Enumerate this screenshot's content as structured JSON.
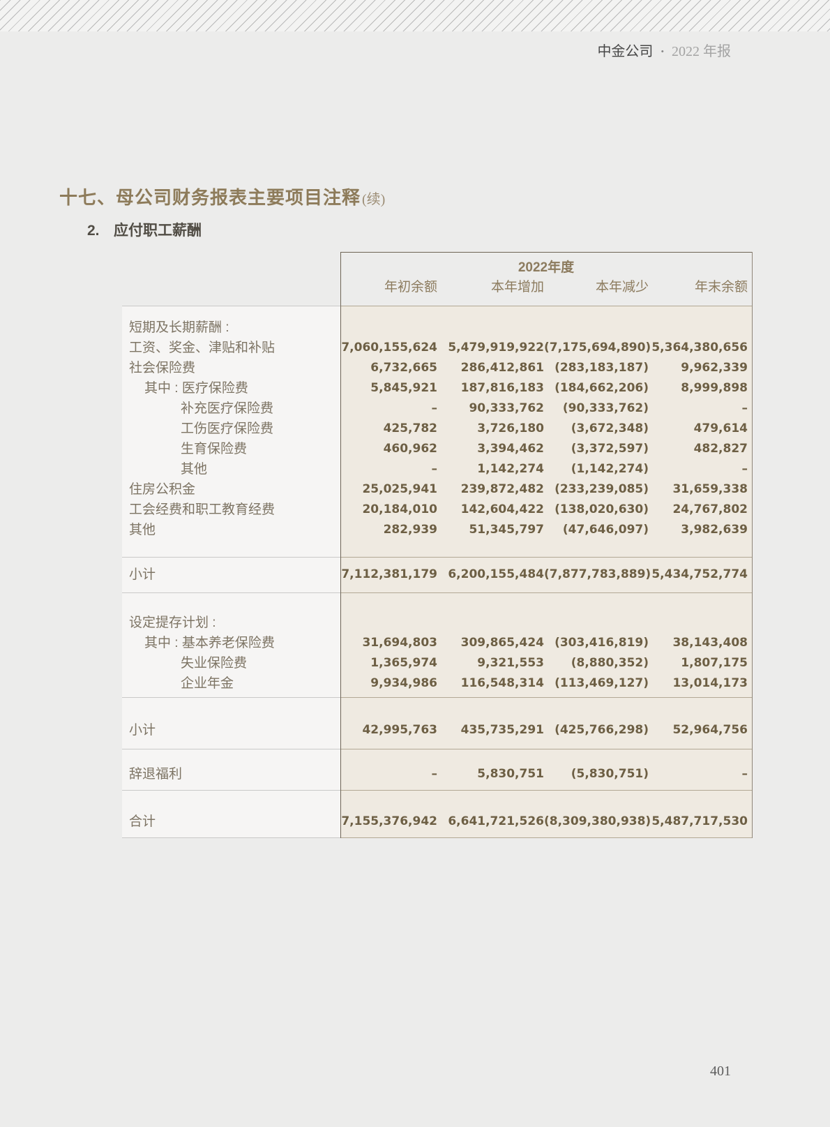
{
  "page": {
    "number": "401"
  },
  "header": {
    "company": "中金公司",
    "separator": "•",
    "report": "2022 年报"
  },
  "section_title": {
    "text": "十七、母公司财务报表主要项目注释",
    "suffix": "(续)"
  },
  "subsection": {
    "index": "2.",
    "title": "应付职工薪酬"
  },
  "colors": {
    "page_bg": "#ececeb",
    "label_panel_bg": "#f6f5f4",
    "data_panel_bg": "#efeae1",
    "accent_brown": "#8c7b5e",
    "number_text": "#6d5f44",
    "label_text": "#7d7464",
    "dark_rule": "#6e6455",
    "divider_gray": "#c9c9c8",
    "divider_tan": "#b2a894"
  },
  "table": {
    "period_header": "2022年度",
    "columns": [
      "年初余额",
      "本年增加",
      "本年减少",
      "年末余额"
    ],
    "sections": [
      {
        "rows": [
          {
            "label": "短期及长期薪酬 :",
            "indent": 0,
            "values": [
              "",
              "",
              "",
              ""
            ]
          },
          {
            "label": "工资、奖金、津贴和补贴",
            "indent": 0,
            "values": [
              "7,060,155,624",
              "5,479,919,922",
              "(7,175,694,890)",
              "5,364,380,656"
            ]
          },
          {
            "label": "社会保险费",
            "indent": 0,
            "values": [
              "6,732,665",
              "286,412,861",
              "(283,183,187)",
              "9,962,339"
            ]
          },
          {
            "label": "其中 : 医疗保险费",
            "indent": 1,
            "values": [
              "5,845,921",
              "187,816,183",
              "(184,662,206)",
              "8,999,898"
            ]
          },
          {
            "label": "补充医疗保险费",
            "indent": 2,
            "values": [
              "–",
              "90,333,762",
              "(90,333,762)",
              "–"
            ]
          },
          {
            "label": "工伤医疗保险费",
            "indent": 2,
            "values": [
              "425,782",
              "3,726,180",
              "(3,672,348)",
              "479,614"
            ]
          },
          {
            "label": "生育保险费",
            "indent": 2,
            "values": [
              "460,962",
              "3,394,462",
              "(3,372,597)",
              "482,827"
            ]
          },
          {
            "label": "其他",
            "indent": 2,
            "values": [
              "–",
              "1,142,274",
              "(1,142,274)",
              "–"
            ]
          },
          {
            "label": "住房公积金",
            "indent": 0,
            "values": [
              "25,025,941",
              "239,872,482",
              "(233,239,085)",
              "31,659,338"
            ]
          },
          {
            "label": "工会经费和职工教育经费",
            "indent": 0,
            "values": [
              "20,184,010",
              "142,604,422",
              "(138,020,630)",
              "24,767,802"
            ]
          },
          {
            "label": "其他",
            "indent": 0,
            "values": [
              "282,939",
              "51,345,797",
              "(47,646,097)",
              "3,982,639"
            ]
          }
        ]
      },
      {
        "rows": [
          {
            "label": "小计",
            "indent": 0,
            "values": [
              "7,112,381,179",
              "6,200,155,484",
              "(7,877,783,889)",
              "5,434,752,774"
            ]
          }
        ]
      },
      {
        "rows": [
          {
            "label": "设定提存计划 :",
            "indent": 0,
            "values": [
              "",
              "",
              "",
              ""
            ]
          },
          {
            "label": "其中 : 基本养老保险费",
            "indent": 1,
            "values": [
              "31,694,803",
              "309,865,424",
              "(303,416,819)",
              "38,143,408"
            ]
          },
          {
            "label": "失业保险费",
            "indent": 2,
            "values": [
              "1,365,974",
              "9,321,553",
              "(8,880,352)",
              "1,807,175"
            ]
          },
          {
            "label": "企业年金",
            "indent": 2,
            "values": [
              "9,934,986",
              "116,548,314",
              "(113,469,127)",
              "13,014,173"
            ]
          }
        ]
      },
      {
        "rows": [
          {
            "label": "小计",
            "indent": 0,
            "values": [
              "42,995,763",
              "435,735,291",
              "(425,766,298)",
              "52,964,756"
            ]
          }
        ]
      },
      {
        "rows": [
          {
            "label": "辞退福利",
            "indent": 0,
            "values": [
              "–",
              "5,830,751",
              "(5,830,751)",
              "–"
            ]
          }
        ]
      },
      {
        "rows": [
          {
            "label": "合计",
            "indent": 0,
            "values": [
              "7,155,376,942",
              "6,641,721,526",
              "(8,309,380,938)",
              "5,487,717,530"
            ]
          }
        ]
      }
    ]
  }
}
